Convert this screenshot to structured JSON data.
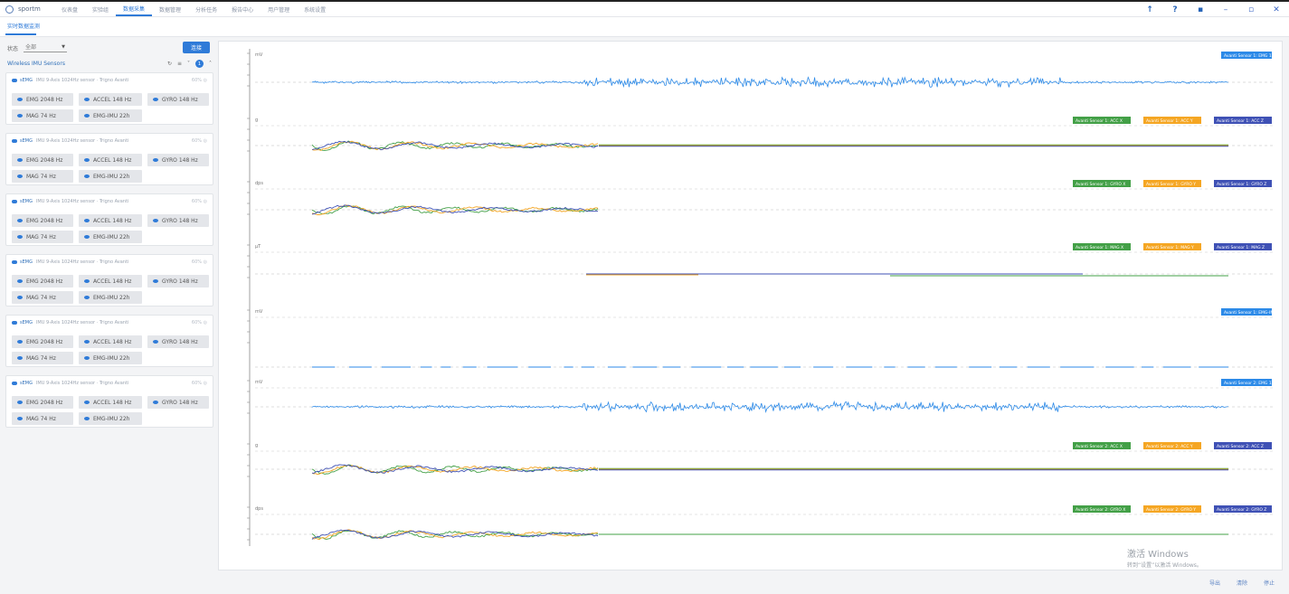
{
  "app": {
    "brand": "sportm"
  },
  "nav": [
    "仪表盘",
    "实验组",
    "数据采集",
    "数据管理",
    "分析任务",
    "报告中心",
    "用户管理",
    "系统设置"
  ],
  "nav_active": 2,
  "subtab": "实时数据监测",
  "filter": {
    "label": "状态",
    "value": "全部",
    "connect_label": "连接"
  },
  "device_list": {
    "title": "Wireless IMU Sensors",
    "badge": "1"
  },
  "device_template": {
    "name": "sEMG",
    "desc": "IMU 9-Axis 1024Hz sensor · Trigno Avanti",
    "right": "60% ◎",
    "chips": [
      "EMG 2048 Hz",
      "ACCEL 148 Hz",
      "GYRO 148 Hz",
      "MAG 74 Hz",
      "EMG-IMU 22h"
    ]
  },
  "devices": 6,
  "legends": [
    [
      "Avanti Sensor 1: EMG 1"
    ],
    [
      "Avanti Sensor 1: ACC X",
      "Avanti Sensor 1: ACC Y",
      "Avanti Sensor 1: ACC Z"
    ],
    [
      "Avanti Sensor 1: GYRO X",
      "Avanti Sensor 1: GYRO Y",
      "Avanti Sensor 1: GYRO Z"
    ],
    [
      "Avanti Sensor 1: MAG X",
      "Avanti Sensor 1: MAG Y",
      "Avanti Sensor 1: MAG Z"
    ],
    [
      "Avanti Sensor 1: EMG-IMU"
    ],
    [
      "Avanti Sensor 2: EMG 1"
    ],
    [
      "Avanti Sensor 2: ACC X",
      "Avanti Sensor 2: ACC Y",
      "Avanti Sensor 2: ACC Z"
    ],
    [
      "Avanti Sensor 2: GYRO X",
      "Avanti Sensor 2: GYRO Y",
      "Avanti Sensor 2: GYRO Z"
    ]
  ],
  "units": [
    "mV",
    "g",
    "dps",
    "μT",
    "mV",
    "mV",
    "g",
    "dps"
  ],
  "colors": {
    "blue": "#2c8ae8",
    "green": "#43a047",
    "orange": "#f5a623",
    "navy": "#3f51b5",
    "accent": "#2f7bd8"
  },
  "footer": [
    "导出",
    "清除",
    "停止"
  ],
  "watermark": {
    "line1": "激活 Windows",
    "line2": "转到“设置”以激活 Windows。"
  }
}
